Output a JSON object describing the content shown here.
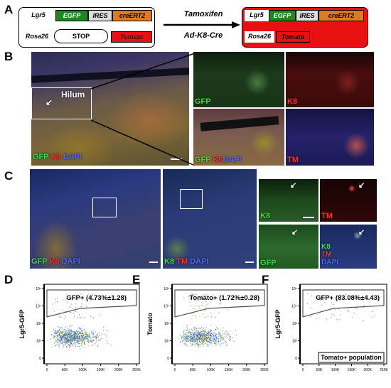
{
  "panel_labels": {
    "A": "A",
    "B": "B",
    "C": "C",
    "D": "D",
    "E": "E",
    "F": "F"
  },
  "panelA": {
    "left": {
      "row1": [
        "Lgr5",
        "EGFP",
        "IRES",
        "creERT2"
      ],
      "row2": [
        "Rosa26",
        "STOP",
        "Tomato"
      ]
    },
    "arrow_top": "Tamoxifen",
    "arrow_bottom": "Ad-K8-Cre",
    "right": {
      "row1": [
        "Lgr5",
        "EGFP",
        "IRES",
        "creERT2"
      ],
      "row2": [
        "Rosa26",
        "Tomato"
      ]
    },
    "colors": {
      "egfp": "#1a8a1a",
      "ires": "#dcdcdc",
      "cre": "#e07a20",
      "tomato": "#e81010"
    }
  },
  "panelB": {
    "hilum": "Hilum",
    "main_caption": [
      {
        "t": "GFP",
        "c": "g"
      },
      {
        "t": " K8",
        "c": "r"
      },
      {
        "t": " DAPI",
        "c": "b"
      }
    ],
    "sub": [
      {
        "caption": [
          {
            "t": "GFP",
            "c": "g"
          }
        ]
      },
      {
        "caption": [
          {
            "t": "K8",
            "c": "r"
          }
        ]
      },
      {
        "caption": [
          {
            "t": "GFP",
            "c": "g"
          },
          {
            "t": " K8",
            "c": "r"
          },
          {
            "t": "DAPI",
            "c": "b"
          }
        ]
      },
      {
        "caption": [
          {
            "t": "TM",
            "c": "r"
          }
        ]
      }
    ]
  },
  "panelC": {
    "left_caption": [
      {
        "t": "GFP",
        "c": "g"
      },
      {
        "t": " K8",
        "c": "r"
      },
      {
        "t": " DAPI",
        "c": "b"
      }
    ],
    "mid_caption": [
      {
        "t": "K8",
        "c": "g"
      },
      {
        "t": " TM",
        "c": "r"
      },
      {
        "t": " DAPI",
        "c": "b"
      }
    ],
    "small": [
      {
        "caption": [
          {
            "t": "K8",
            "c": "g"
          }
        ]
      },
      {
        "caption": [
          {
            "t": "TM",
            "c": "r"
          }
        ]
      },
      {
        "caption": [
          {
            "t": "GFP",
            "c": "g"
          }
        ]
      },
      {
        "caption": [
          {
            "t": "K8",
            "c": "g"
          },
          {
            "t": "TM",
            "c": "r"
          },
          {
            "t": "DAPI",
            "c": "b"
          }
        ]
      }
    ]
  },
  "chart_data": [
    {
      "type": "scatter",
      "panel": "D",
      "ylabel": "Lgr5-GFP",
      "xlabel": "",
      "gate_label": "GFP+ (4.73%±1.28)",
      "x_ticks": [
        "0",
        "50K",
        "100K",
        "150K",
        "200K",
        "250K"
      ],
      "y_ticks": [
        "0",
        "10²",
        "10³",
        "10⁴",
        "10⁵"
      ]
    },
    {
      "type": "scatter",
      "panel": "E",
      "ylabel": "Tomato",
      "xlabel": "",
      "gate_label": "Tomato+ (1.72%±0.28)",
      "x_ticks": [
        "0",
        "50K",
        "100K",
        "150K",
        "200K",
        "250K"
      ],
      "y_ticks": [
        "0",
        "10²",
        "10³",
        "10⁴",
        "10⁵"
      ]
    },
    {
      "type": "scatter",
      "panel": "F",
      "ylabel": "Lgr5-GFP",
      "xlabel": "",
      "gate_label": "GFP+ (83.08%±4.43)",
      "box_label": "Tomato+ population",
      "x_ticks": [
        "0",
        "50K",
        "100K",
        "150K",
        "200K",
        "250K"
      ],
      "y_ticks": [
        "0",
        "10²",
        "10³",
        "10⁴",
        "10⁵"
      ]
    }
  ]
}
